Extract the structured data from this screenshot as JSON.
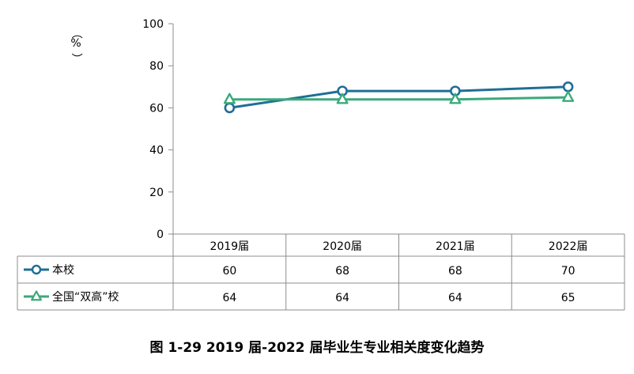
{
  "chart_data": {
    "type": "line",
    "title": "",
    "ylabel": "%",
    "xlabel": "",
    "ylim": [
      0,
      100
    ],
    "yticks": [
      0,
      20,
      40,
      60,
      80,
      100
    ],
    "categories": [
      "2019届",
      "2020届",
      "2021届",
      "2022届"
    ],
    "series": [
      {
        "name": "本校",
        "values": [
          60,
          68,
          68,
          70
        ],
        "color": "#1F6E96",
        "marker": "circle"
      },
      {
        "name": "全国“双高”校",
        "values": [
          64,
          64,
          64,
          65
        ],
        "color": "#3BAA7A",
        "marker": "triangle"
      }
    ],
    "table": true
  },
  "caption": "图 1-29 2019 届-2022 届毕业生专业相关度变化趋势"
}
